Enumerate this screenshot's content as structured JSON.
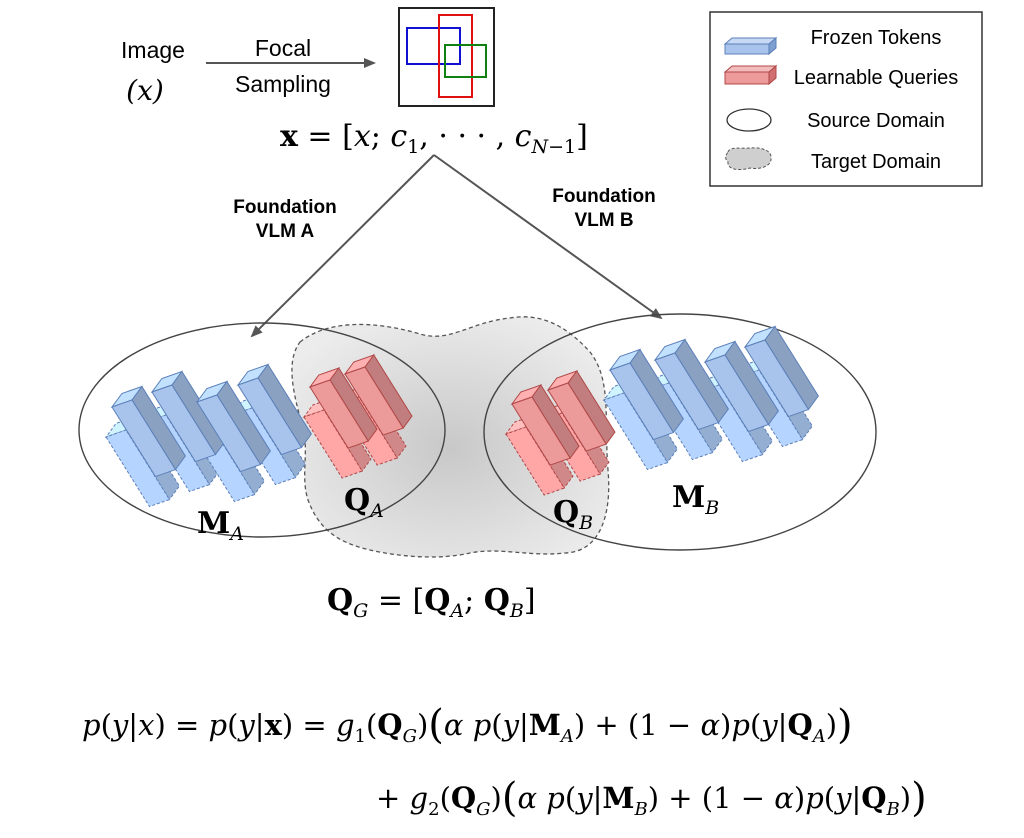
{
  "input": {
    "image_label": "Image",
    "image_var": "(x)",
    "sampling_top": "Focal",
    "sampling_bottom": "Sampling"
  },
  "equation_x": "x = [x; c₁, · · · , c_{N−1}]",
  "branches": {
    "a_line1": "Foundation",
    "a_line2": "VLM A",
    "b_line1": "Foundation",
    "b_line2": "VLM B"
  },
  "legend": {
    "frozen": "Frozen Tokens",
    "learnable": "Learnable Queries",
    "source": "Source Domain",
    "target": "Target Domain"
  },
  "labels": {
    "m_a": "M",
    "m_a_sub": "A",
    "q_a": "Q",
    "q_a_sub": "A",
    "q_b": "Q",
    "q_b_sub": "B",
    "m_b": "M",
    "m_b_sub": "B"
  },
  "equation_qg": "Q_G = [Q_A; Q_B]",
  "equation_p_line1": "p(y|x) = p(y|x) = g₁(Q_G)(α p(y|M_A) + (1 − α)p(y|Q_A))",
  "equation_p_line2": "+ g₂(Q_G)(α p(y|M_B) + (1 − α)p(y|Q_B))",
  "colors": {
    "frozen_fill": "#a8c4ec",
    "frozen_stroke": "#5b7fb8",
    "learnable_fill": "#ec9a9a",
    "learnable_stroke": "#b04848",
    "target_fill": "#d4d4d4",
    "box_blue": "#1010d0",
    "box_red": "#e01010",
    "box_green": "#108010"
  },
  "icons": [
    "frozen-token-icon",
    "learnable-query-icon",
    "source-domain-icon",
    "target-domain-icon",
    "arrow-icon"
  ]
}
